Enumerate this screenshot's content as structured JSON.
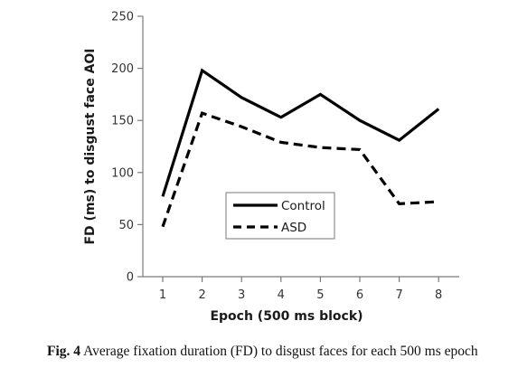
{
  "chart_data": {
    "type": "line",
    "categories": [
      "1",
      "2",
      "3",
      "4",
      "5",
      "6",
      "7",
      "8"
    ],
    "series": [
      {
        "name": "Control",
        "values": [
          77,
          198,
          172,
          153,
          175,
          150,
          131,
          161
        ],
        "color": "#000000",
        "dash": "solid"
      },
      {
        "name": "ASD",
        "values": [
          48,
          157,
          144,
          129,
          124,
          122,
          70,
          72
        ],
        "color": "#000000",
        "dash": "dashed"
      }
    ],
    "xlabel": "Epoch (500 ms block)",
    "ylabel": "FD (ms) to disgust face AOI",
    "ylim": [
      0,
      250
    ],
    "yticks": [
      0,
      50,
      100,
      150,
      200,
      250
    ],
    "grid": false,
    "legend_position": "center-right"
  },
  "caption": {
    "label": "Fig. 4",
    "text": "Average fixation duration (FD) to disgust faces for each 500 ms epoch"
  }
}
